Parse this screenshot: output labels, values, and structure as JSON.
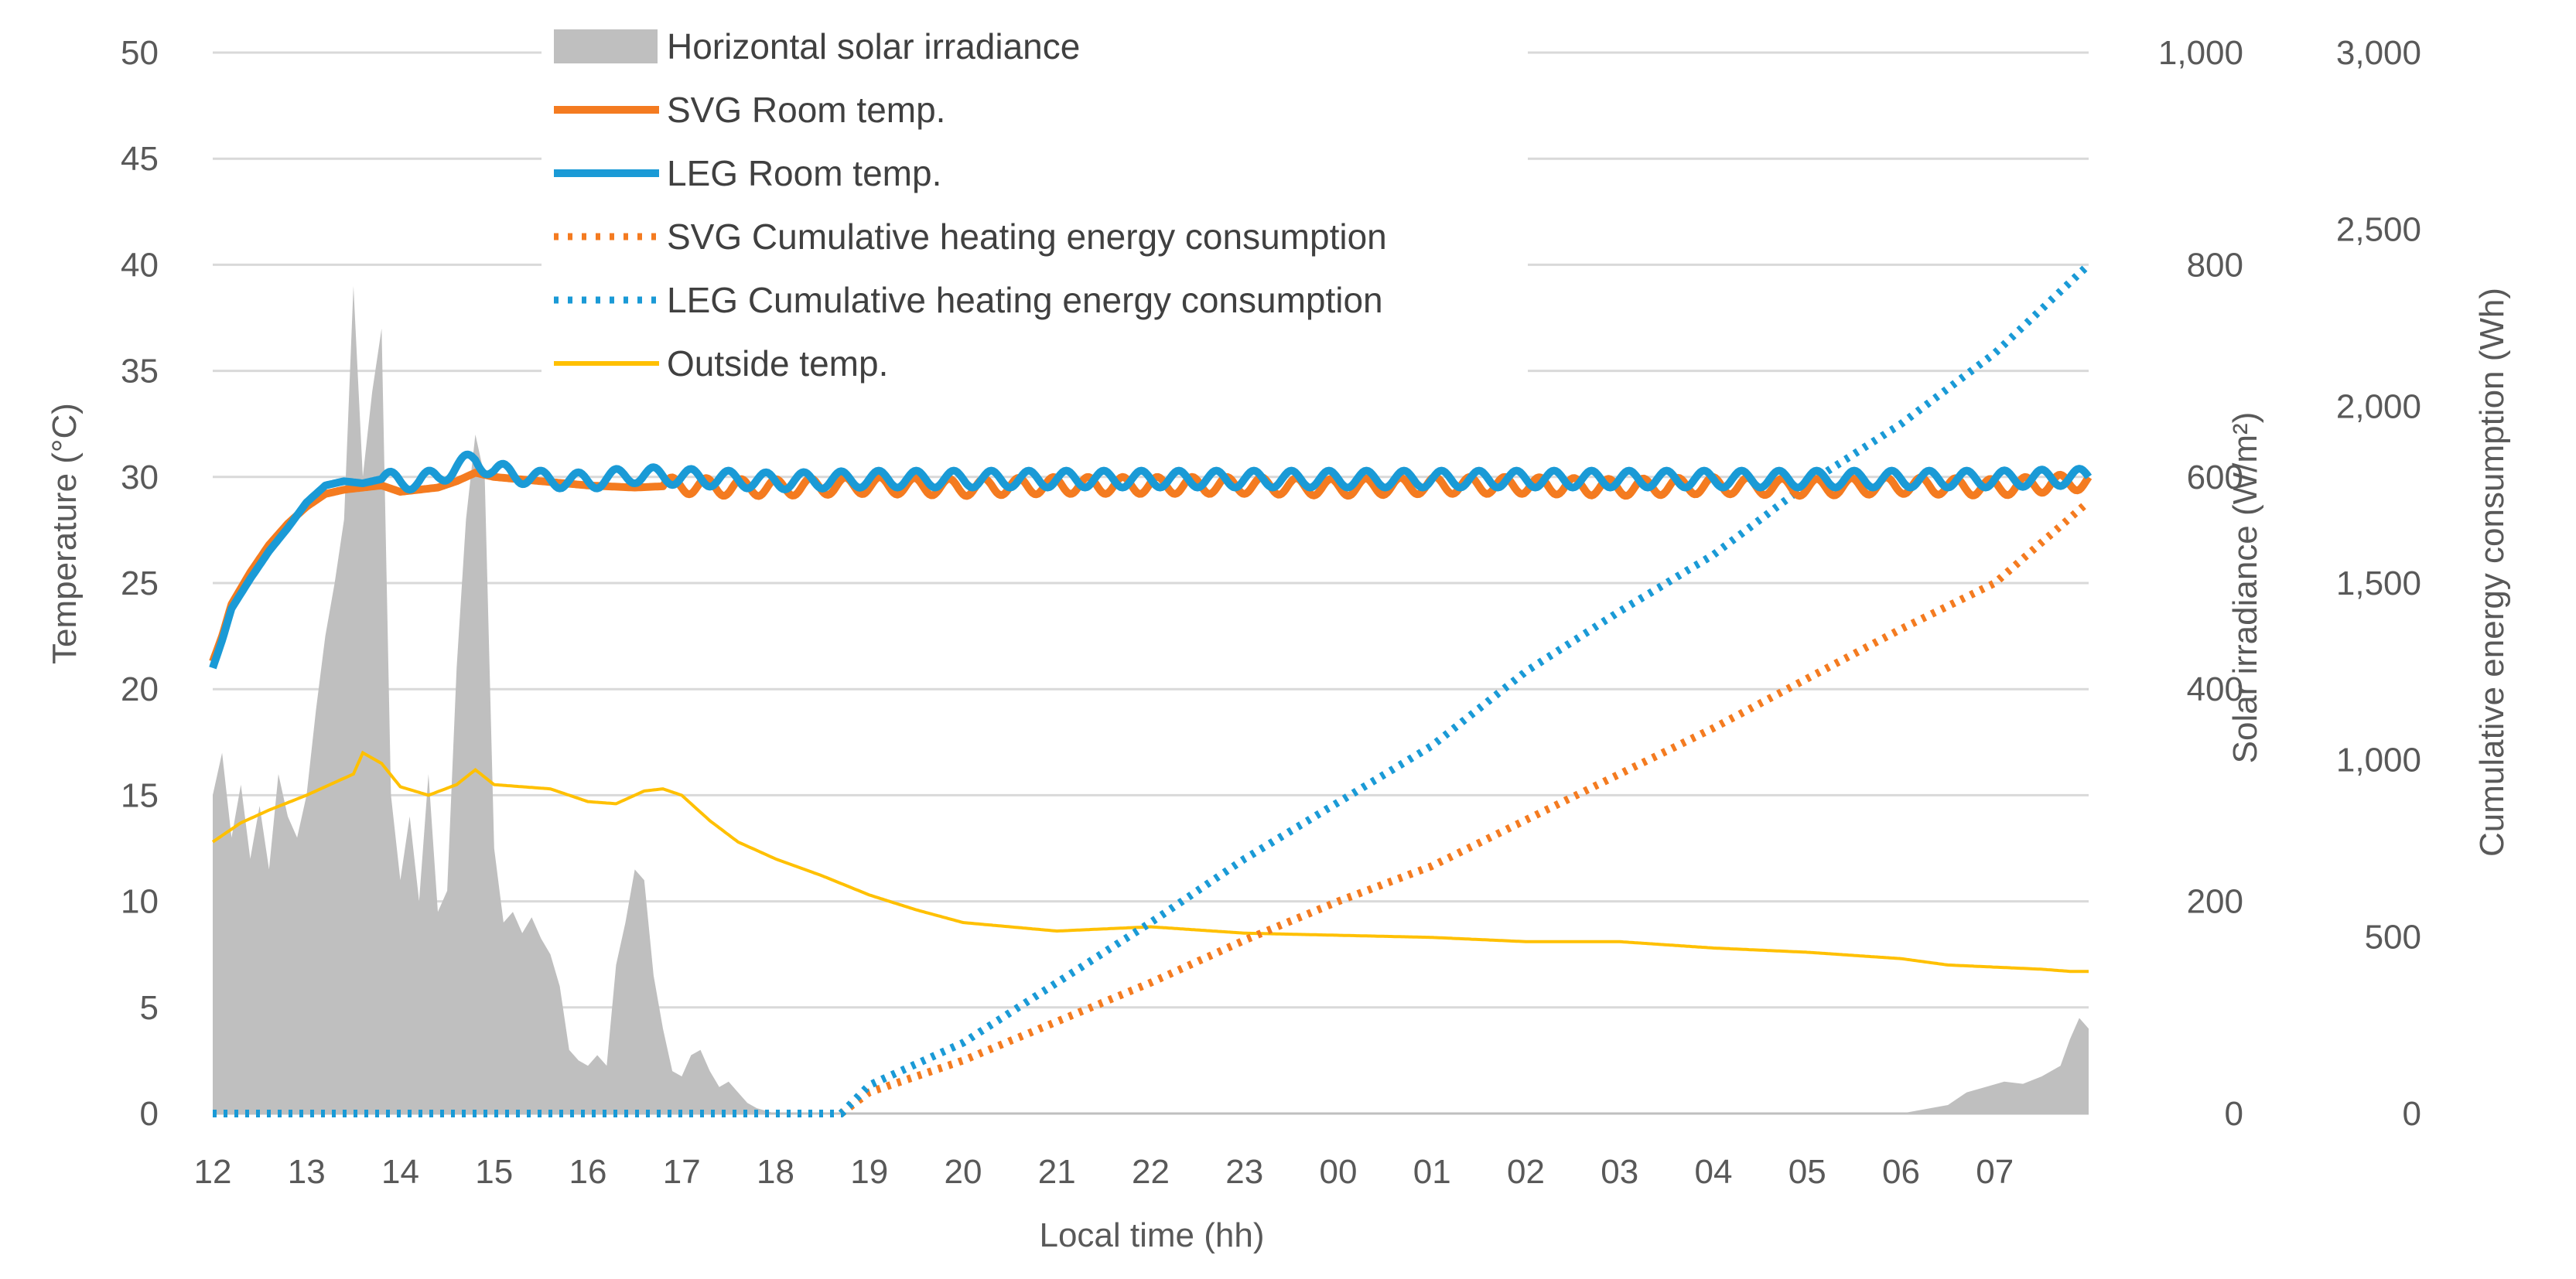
{
  "chart_data": {
    "type": "line",
    "xlabel": "Local time (hh)",
    "x_tick_labels": [
      "12",
      "13",
      "14",
      "15",
      "16",
      "17",
      "18",
      "19",
      "20",
      "21",
      "22",
      "23",
      "00",
      "01",
      "02",
      "03",
      "04",
      "05",
      "06",
      "07"
    ],
    "x_range_hours": [
      0,
      20
    ],
    "axes": {
      "temperature": {
        "label": "Temperature (°C)",
        "range": [
          0,
          50
        ],
        "ticks": [
          "0",
          "5",
          "10",
          "15",
          "20",
          "25",
          "30",
          "35",
          "40",
          "45",
          "50"
        ]
      },
      "irradiance": {
        "label": "Solar irradiance (W/m²)",
        "range": [
          0,
          1000
        ],
        "ticks": [
          "0",
          "200",
          "400",
          "600",
          "800",
          "1,000"
        ]
      },
      "energy": {
        "label": "Cumulative energy consumption (Wh)",
        "range": [
          0,
          3000
        ],
        "ticks": [
          "0",
          "500",
          "1,000",
          "1,500",
          "2,000",
          "2,500",
          "3,000"
        ]
      }
    },
    "legend": [
      {
        "label": "Horizontal solar irradiance",
        "series": "irradiance"
      },
      {
        "label": "SVG Room temp.",
        "series": "svg_room"
      },
      {
        "label": "LEG Room temp.",
        "series": "leg_room"
      },
      {
        "label": "SVG Cumulative heating energy consumption",
        "series": "svg_energy"
      },
      {
        "label": "LEG Cumulative heating energy consumption",
        "series": "leg_energy"
      },
      {
        "label": "Outside temp.",
        "series": "outside"
      }
    ],
    "legend_position": "top-center",
    "series": {
      "irradiance": {
        "name": "Horizontal solar irradiance",
        "axis": "irradiance",
        "kind": "area",
        "color": "#bfbfbf",
        "x": [
          0,
          0.1,
          0.2,
          0.3,
          0.4,
          0.5,
          0.6,
          0.7,
          0.8,
          0.9,
          1.0,
          1.1,
          1.2,
          1.3,
          1.4,
          1.5,
          1.6,
          1.7,
          1.8,
          1.9,
          2.0,
          2.1,
          2.2,
          2.3,
          2.4,
          2.5,
          2.6,
          2.7,
          2.8,
          2.9,
          3.0,
          3.1,
          3.2,
          3.3,
          3.4,
          3.5,
          3.6,
          3.7,
          3.8,
          3.9,
          4.0,
          4.1,
          4.2,
          4.3,
          4.4,
          4.5,
          4.6,
          4.7,
          4.8,
          4.9,
          5.0,
          5.1,
          5.2,
          5.3,
          5.4,
          5.5,
          5.6,
          5.7,
          5.8,
          6.0,
          6.5,
          7.0,
          7.5,
          8.0,
          8.5,
          9.0,
          9.5,
          10.0,
          11.0,
          12.0,
          13.0,
          14.0,
          15.0,
          16.0,
          17.0,
          18.0,
          18.5,
          18.7,
          18.9,
          19.1,
          19.3,
          19.5,
          19.7,
          19.8,
          19.9,
          20.0
        ],
        "y": [
          300,
          340,
          260,
          310,
          240,
          290,
          230,
          320,
          280,
          260,
          300,
          380,
          450,
          500,
          560,
          780,
          600,
          680,
          740,
          300,
          220,
          280,
          200,
          320,
          190,
          210,
          420,
          560,
          640,
          600,
          250,
          180,
          190,
          170,
          185,
          165,
          150,
          120,
          60,
          50,
          45,
          55,
          45,
          140,
          180,
          230,
          220,
          130,
          80,
          40,
          35,
          55,
          60,
          40,
          25,
          30,
          20,
          10,
          5,
          0,
          0,
          0,
          0,
          0,
          0,
          0,
          0,
          0,
          0,
          0,
          0,
          0,
          0,
          0,
          0,
          0,
          8,
          20,
          25,
          30,
          28,
          35,
          45,
          70,
          90,
          80
        ]
      },
      "svg_room": {
        "name": "SVG Room temp.",
        "axis": "temperature",
        "color": "#f47b20",
        "x": [
          0,
          0.1,
          0.2,
          0.4,
          0.6,
          0.8,
          1.0,
          1.2,
          1.4,
          1.6,
          1.8,
          2.0,
          2.2,
          2.4,
          2.6,
          2.8,
          3.0,
          3.5,
          4.0,
          4.5,
          5.0,
          5.5,
          6.0,
          7,
          8,
          9,
          10,
          11,
          12,
          13,
          14,
          15,
          16,
          17,
          18,
          19,
          20
        ],
        "y": [
          21.3,
          22.5,
          24,
          25.5,
          26.8,
          27.8,
          28.6,
          29.2,
          29.4,
          29.5,
          29.6,
          29.3,
          29.4,
          29.5,
          29.8,
          30.2,
          30.0,
          29.8,
          29.6,
          29.5,
          29.6,
          29.5,
          29.5,
          29.6,
          29.5,
          29.6,
          29.6,
          29.6,
          29.5,
          29.6,
          29.6,
          29.5,
          29.6,
          29.5,
          29.6,
          29.5,
          29.8
        ],
        "oscillation": {
          "start": 4.8,
          "period": 0.37,
          "amplitude": 0.4
        }
      },
      "leg_room": {
        "name": "LEG Room temp.",
        "axis": "temperature",
        "color": "#1a9ad6",
        "x": [
          0,
          0.1,
          0.2,
          0.4,
          0.6,
          0.8,
          1.0,
          1.2,
          1.4,
          1.6,
          1.8,
          2.0,
          2.2,
          2.4,
          2.6,
          2.8,
          3.0,
          3.5,
          4.0,
          4.5,
          5.0,
          5.5,
          6.0,
          7,
          8,
          9,
          10,
          11,
          12,
          13,
          14,
          15,
          16,
          17,
          18,
          19,
          20
        ],
        "y": [
          21.0,
          22.3,
          23.8,
          25.2,
          26.5,
          27.6,
          28.8,
          29.6,
          29.8,
          29.7,
          29.9,
          29.8,
          29.8,
          30.0,
          30.5,
          30.8,
          30.3,
          29.9,
          29.8,
          30.1,
          30.0,
          29.9,
          29.8,
          29.9,
          29.9,
          29.9,
          29.9,
          29.9,
          29.9,
          29.9,
          29.9,
          29.9,
          29.9,
          29.9,
          29.9,
          29.9,
          30.0
        ],
        "oscillation": {
          "start": 1.8,
          "period": 0.4,
          "amplitude": 0.4
        }
      },
      "svg_energy": {
        "name": "SVG Cumulative heating energy consumption",
        "axis": "energy",
        "color": "#f47b20",
        "dotted": true,
        "x": [
          0,
          6.7,
          7,
          8,
          9,
          10,
          11,
          12,
          13,
          14,
          15,
          16,
          17,
          18,
          19,
          20
        ],
        "y": [
          0,
          0,
          60,
          150,
          260,
          370,
          490,
          600,
          700,
          830,
          960,
          1090,
          1230,
          1370,
          1500,
          1730
        ]
      },
      "leg_energy": {
        "name": "LEG Cumulative heating energy consumption",
        "axis": "energy",
        "color": "#1a9ad6",
        "dotted": true,
        "x": [
          0,
          6.7,
          7,
          8,
          9,
          10,
          11,
          12,
          13,
          14,
          15,
          16,
          17,
          18,
          19,
          20
        ],
        "y": [
          0,
          0,
          80,
          200,
          370,
          540,
          720,
          880,
          1040,
          1250,
          1420,
          1580,
          1780,
          1950,
          2150,
          2400
        ]
      },
      "outside": {
        "name": "Outside temp.",
        "axis": "temperature",
        "color": "#ffc000",
        "x": [
          0,
          0.3,
          0.6,
          1.0,
          1.3,
          1.5,
          1.6,
          1.8,
          2.0,
          2.3,
          2.6,
          2.8,
          3.0,
          3.3,
          3.6,
          4.0,
          4.3,
          4.6,
          4.8,
          5.0,
          5.3,
          5.6,
          6.0,
          6.5,
          7.0,
          7.5,
          8.0,
          9.0,
          10.0,
          11.0,
          12.0,
          13.0,
          14.0,
          15.0,
          16.0,
          17.0,
          18.0,
          18.5,
          19.0,
          19.5,
          19.8,
          20.0
        ],
        "y": [
          12.8,
          13.7,
          14.3,
          15.0,
          15.6,
          16.0,
          17.0,
          16.5,
          15.4,
          15.0,
          15.5,
          16.2,
          15.5,
          15.4,
          15.3,
          14.7,
          14.6,
          15.2,
          15.3,
          15.0,
          13.8,
          12.8,
          12.0,
          11.2,
          10.3,
          9.6,
          9.0,
          8.6,
          8.8,
          8.5,
          8.4,
          8.3,
          8.1,
          8.1,
          7.8,
          7.6,
          7.3,
          7.0,
          6.9,
          6.8,
          6.7,
          6.7
        ]
      }
    }
  }
}
